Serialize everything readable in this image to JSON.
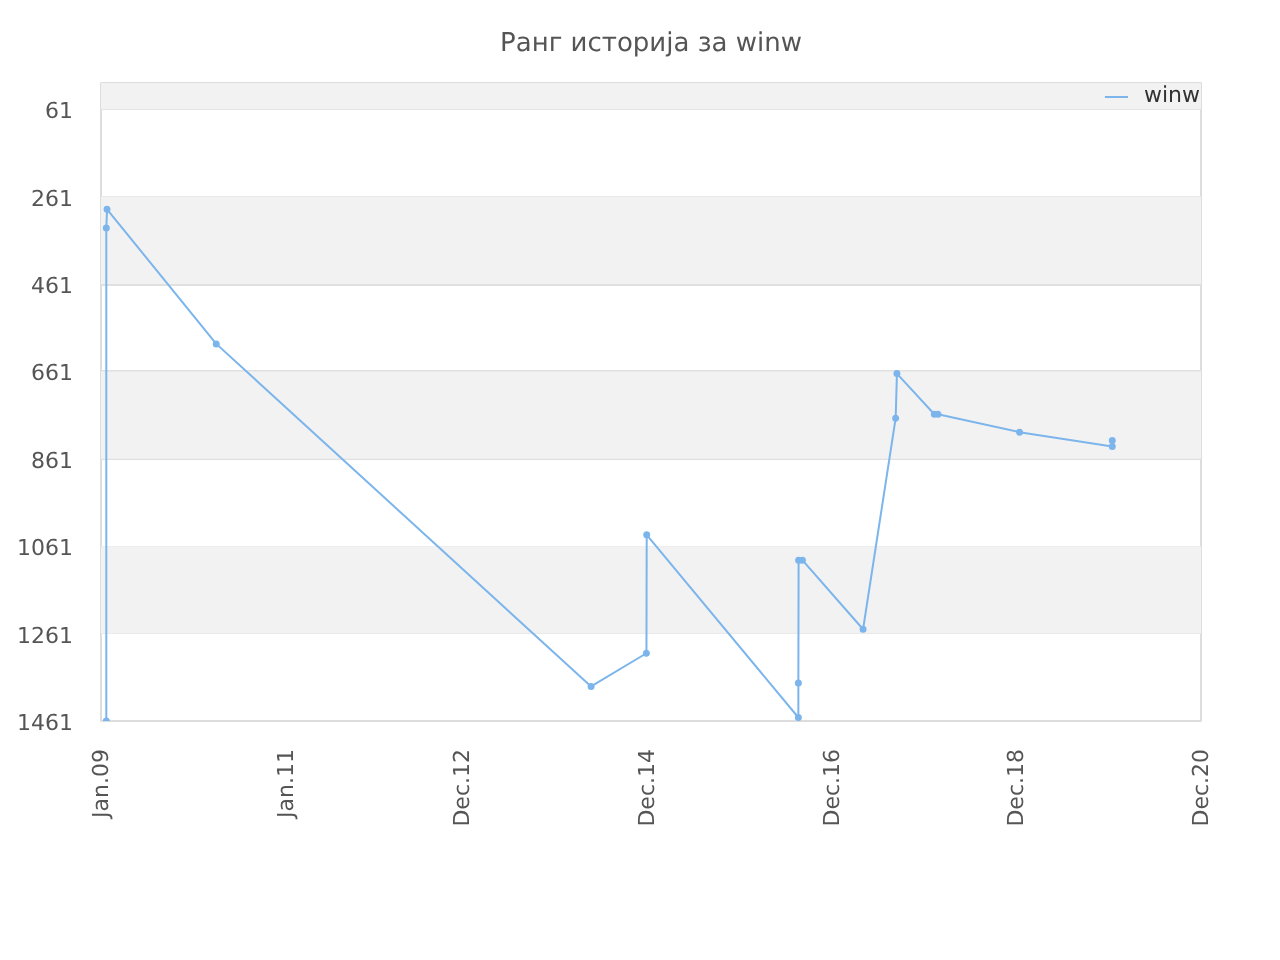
{
  "chart_data": {
    "type": "line",
    "title": "Ранг историја за winw",
    "x": [
      "2009-01-22",
      "2009-01-22",
      "2009-01-25",
      "2010-04-02",
      "2014-04-24",
      "2014-11-29",
      "2014-11-30",
      "2016-07-22",
      "2016-07-22",
      "2016-07-23",
      "2016-08-07",
      "2017-04-04",
      "2017-08-11",
      "2017-08-16",
      "2018-01-11",
      "2018-01-25",
      "2018-12-14",
      "2019-12-16",
      "2019-12-16"
    ],
    "series": [
      {
        "name": "winw",
        "color": "#7cb5ec",
        "values": [
          1461,
          333,
          290,
          598,
          1382,
          1306,
          1035,
          1453,
          1374,
          1093,
          1093,
          1251,
          768,
          666,
          759,
          759,
          800,
          833,
          819
        ]
      }
    ],
    "xlim": [
      "2009-01-01",
      "2020-12-01"
    ],
    "xticks": [
      {
        "value": "2009-01-01",
        "label": "Jan.09"
      },
      {
        "value": "2011-01-01",
        "label": "Jan.11"
      },
      {
        "value": "2012-12-01",
        "label": "Dec.12"
      },
      {
        "value": "2014-12-01",
        "label": "Dec.14"
      },
      {
        "value": "2016-12-01",
        "label": "Dec.16"
      },
      {
        "value": "2018-12-01",
        "label": "Dec.18"
      },
      {
        "value": "2020-12-01",
        "label": "Dec.20"
      }
    ],
    "ylim": [
      1461,
      1
    ],
    "yticks": [
      61,
      261,
      461,
      661,
      861,
      1061,
      1261,
      1461
    ],
    "grid": "y",
    "legend": "top right",
    "marker": "circle",
    "line_style": "solid"
  }
}
